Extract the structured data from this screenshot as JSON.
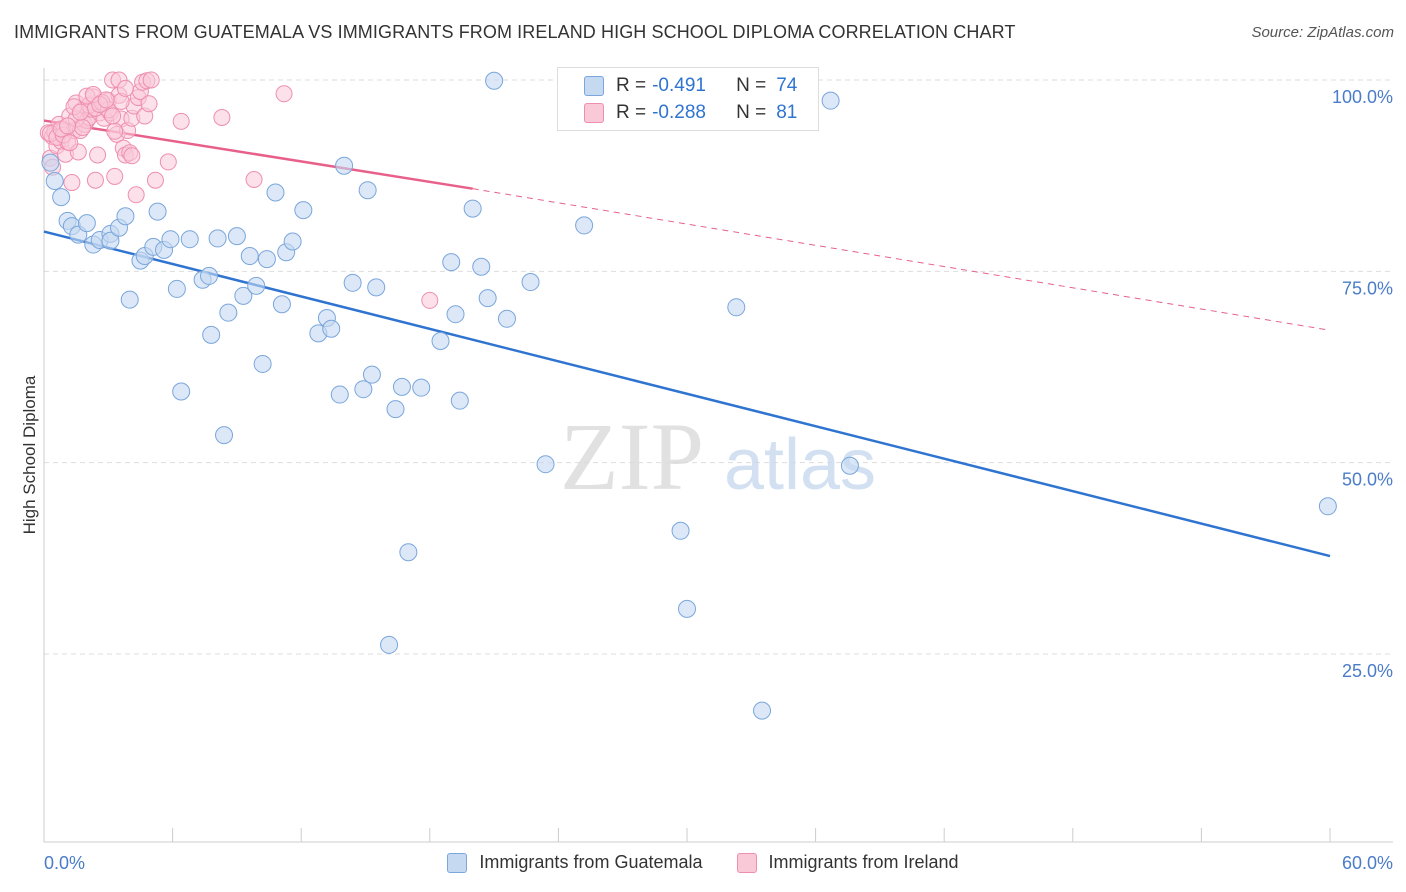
{
  "header": {
    "title": "IMMIGRANTS FROM GUATEMALA VS IMMIGRANTS FROM IRELAND HIGH SCHOOL DIPLOMA CORRELATION CHART",
    "source": "Source: ZipAtlas.com"
  },
  "watermark": {
    "zip": "ZIP",
    "atlas": "atlas"
  },
  "stats": {
    "guatemala": {
      "r_label": "R =",
      "r_value": "-0.491",
      "n_label": "N =",
      "n_value": "74"
    },
    "ireland": {
      "r_label": "R =",
      "r_value": "-0.288",
      "n_label": "N =",
      "n_value": "81"
    }
  },
  "legend": {
    "guatemala": "Immigrants from Guatemala",
    "ireland": "Immigrants from Ireland"
  },
  "colors": {
    "guatemala_fill": "#c5d9f1",
    "guatemala_stroke": "#7aa6dc",
    "guatemala_line": "#2f74d0",
    "ireland_fill": "#f9c9d8",
    "ireland_stroke": "#ee8fae",
    "ireland_line": "#e8608a",
    "axis_label": "#4a7cc8",
    "grid": "#dddddd"
  },
  "chart_data": {
    "type": "scatter",
    "title": "IMMIGRANTS FROM GUATEMALA VS IMMIGRANTS FROM IRELAND HIGH SCHOOL DIPLOMA CORRELATION CHART",
    "xlabel": "",
    "ylabel": "High School Diploma",
    "xlim": [
      0,
      60
    ],
    "ylim": [
      0,
      102
    ],
    "x_tick_labels": [
      "0.0%",
      "60.0%"
    ],
    "y_ticks": [
      25,
      50,
      75,
      100
    ],
    "y_tick_labels": [
      "25.0%",
      "50.0%",
      "75.0%",
      "100.0%"
    ],
    "grid": true,
    "series": [
      {
        "name": "Immigrants from Guatemala",
        "points": [
          [
            0.3,
            89.2
          ],
          [
            0.5,
            86.8
          ],
          [
            0.8,
            84.7
          ],
          [
            1.1,
            81.6
          ],
          [
            1.3,
            80.9
          ],
          [
            1.6,
            79.8
          ],
          [
            2.0,
            81.3
          ],
          [
            2.3,
            78.5
          ],
          [
            2.6,
            79.1
          ],
          [
            3.1,
            79.9
          ],
          [
            3.1,
            79.0
          ],
          [
            3.5,
            80.7
          ],
          [
            3.8,
            82.2
          ],
          [
            4.0,
            71.3
          ],
          [
            4.5,
            76.4
          ],
          [
            4.7,
            77.0
          ],
          [
            5.1,
            78.2
          ],
          [
            5.3,
            82.8
          ],
          [
            5.6,
            77.8
          ],
          [
            5.9,
            79.2
          ],
          [
            6.2,
            72.7
          ],
          [
            6.4,
            59.3
          ],
          [
            6.8,
            79.2
          ],
          [
            7.4,
            73.9
          ],
          [
            7.7,
            74.4
          ],
          [
            7.8,
            66.7
          ],
          [
            8.1,
            79.3
          ],
          [
            8.4,
            53.6
          ],
          [
            8.6,
            69.6
          ],
          [
            9.0,
            79.6
          ],
          [
            9.3,
            71.8
          ],
          [
            9.6,
            77.0
          ],
          [
            9.9,
            73.1
          ],
          [
            10.2,
            62.9
          ],
          [
            10.4,
            76.6
          ],
          [
            10.8,
            85.3
          ],
          [
            11.1,
            70.7
          ],
          [
            11.3,
            77.5
          ],
          [
            11.6,
            78.9
          ],
          [
            12.1,
            83.0
          ],
          [
            12.8,
            66.9
          ],
          [
            13.2,
            68.9
          ],
          [
            13.4,
            67.5
          ],
          [
            13.8,
            58.9
          ],
          [
            14.0,
            88.8
          ],
          [
            14.4,
            73.5
          ],
          [
            14.9,
            59.6
          ],
          [
            15.1,
            85.6
          ],
          [
            15.3,
            61.5
          ],
          [
            15.5,
            72.9
          ],
          [
            16.1,
            26.2
          ],
          [
            16.4,
            57.0
          ],
          [
            16.7,
            59.9
          ],
          [
            17.0,
            38.3
          ],
          [
            17.6,
            59.8
          ],
          [
            18.5,
            65.9
          ],
          [
            19.0,
            76.2
          ],
          [
            19.2,
            69.4
          ],
          [
            19.4,
            58.1
          ],
          [
            20.0,
            83.2
          ],
          [
            20.4,
            75.6
          ],
          [
            20.7,
            71.5
          ],
          [
            21.0,
            99.9
          ],
          [
            21.6,
            68.8
          ],
          [
            22.7,
            73.6
          ],
          [
            23.4,
            49.8
          ],
          [
            25.2,
            81.0
          ],
          [
            29.7,
            41.1
          ],
          [
            30.0,
            30.9
          ],
          [
            32.3,
            70.3
          ],
          [
            33.5,
            17.6
          ],
          [
            36.7,
            97.3
          ],
          [
            37.6,
            49.6
          ],
          [
            59.9,
            44.3
          ]
        ],
        "trend": {
          "x0": 0,
          "y0": 80.2,
          "x1": 60,
          "y1": 37.8
        }
      },
      {
        "name": "Immigrants from Ireland",
        "points": [
          [
            0.2,
            93.1
          ],
          [
            0.3,
            89.8
          ],
          [
            0.4,
            92.6
          ],
          [
            0.5,
            93.2
          ],
          [
            0.6,
            91.4
          ],
          [
            0.7,
            94.2
          ],
          [
            0.8,
            92.0
          ],
          [
            0.9,
            93.5
          ],
          [
            1.0,
            90.3
          ],
          [
            1.1,
            91.9
          ],
          [
            1.2,
            95.3
          ],
          [
            1.3,
            86.6
          ],
          [
            1.4,
            93.4
          ],
          [
            1.5,
            97.0
          ],
          [
            1.6,
            90.6
          ],
          [
            1.7,
            93.4
          ],
          [
            1.8,
            96.1
          ],
          [
            1.9,
            94.2
          ],
          [
            2.0,
            94.7
          ],
          [
            2.1,
            95.1
          ],
          [
            2.2,
            96.2
          ],
          [
            2.3,
            97.8
          ],
          [
            2.4,
            86.9
          ],
          [
            2.5,
            90.2
          ],
          [
            2.6,
            95.7
          ],
          [
            2.7,
            97.0
          ],
          [
            2.8,
            95.0
          ],
          [
            2.9,
            96.4
          ],
          [
            3.0,
            97.3
          ],
          [
            3.1,
            95.7
          ],
          [
            3.2,
            100.0
          ],
          [
            3.3,
            87.4
          ],
          [
            3.4,
            92.9
          ],
          [
            3.5,
            98.0
          ],
          [
            3.6,
            94.9
          ],
          [
            3.7,
            91.1
          ],
          [
            3.8,
            90.2
          ],
          [
            3.9,
            93.4
          ],
          [
            4.0,
            90.5
          ],
          [
            4.1,
            95.0
          ],
          [
            4.2,
            96.6
          ],
          [
            4.3,
            85.0
          ],
          [
            4.4,
            97.7
          ],
          [
            4.5,
            98.5
          ],
          [
            4.6,
            99.7
          ],
          [
            4.7,
            95.3
          ],
          [
            4.8,
            99.9
          ],
          [
            4.9,
            96.9
          ],
          [
            5.0,
            100.0
          ],
          [
            5.2,
            86.9
          ],
          [
            5.8,
            89.3
          ],
          [
            6.4,
            94.6
          ],
          [
            8.3,
            95.1
          ],
          [
            9.8,
            87.0
          ],
          [
            11.2,
            98.2
          ],
          [
            18.0,
            71.2
          ],
          [
            0.3,
            93.0
          ],
          [
            0.6,
            92.5
          ],
          [
            0.9,
            92.8
          ],
          [
            1.2,
            91.8
          ],
          [
            1.5,
            94.9
          ],
          [
            1.8,
            93.8
          ],
          [
            2.1,
            96.7
          ],
          [
            2.4,
            96.3
          ],
          [
            2.7,
            97.1
          ],
          [
            3.0,
            96.1
          ],
          [
            3.3,
            93.3
          ],
          [
            3.6,
            97.2
          ],
          [
            0.4,
            88.6
          ],
          [
            0.8,
            93.6
          ],
          [
            1.1,
            94.0
          ],
          [
            1.4,
            96.5
          ],
          [
            1.7,
            95.8
          ],
          [
            2.0,
            97.9
          ],
          [
            2.3,
            98.1
          ],
          [
            2.6,
            96.8
          ],
          [
            2.9,
            97.4
          ],
          [
            3.2,
            95.3
          ],
          [
            3.5,
            100.0
          ],
          [
            3.8,
            98.9
          ],
          [
            4.1,
            90.1
          ]
        ],
        "trend": {
          "x0": 0,
          "y0": 94.7,
          "x1": 20,
          "y1": 85.8
        },
        "trend_extension": {
          "x0": 20,
          "y0": 85.8,
          "x1": 60,
          "y1": 67.3
        }
      }
    ]
  }
}
